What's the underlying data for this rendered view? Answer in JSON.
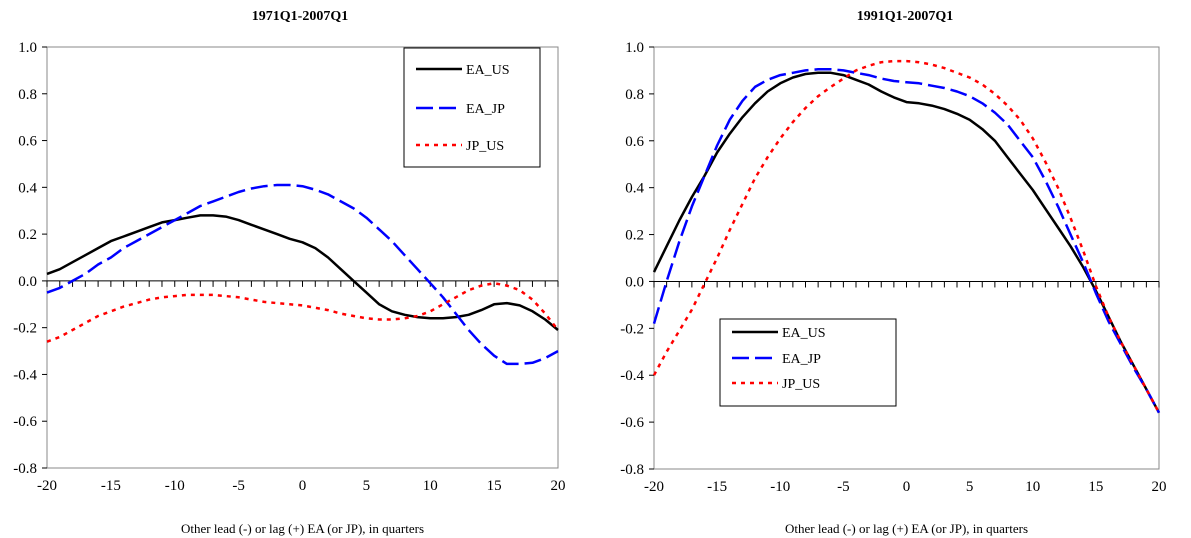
{
  "chart_data": [
    {
      "type": "line",
      "title": "1971Q1-2007Q1",
      "xlabel": "Other lead (-) or lag (+) EA (or JP), in quarters",
      "ylabel": "",
      "xlim": [
        -20,
        20
      ],
      "ylim": [
        -0.8,
        1.0
      ],
      "xticks": [
        -20,
        -15,
        -10,
        -5,
        0,
        5,
        10,
        15,
        20
      ],
      "yticks": [
        -0.8,
        -0.6,
        -0.4,
        -0.2,
        0.0,
        0.2,
        0.4,
        0.6,
        0.8,
        1.0
      ],
      "ytick_labels": [
        "-0.8",
        "-0.6",
        "-0.4",
        "-0.2",
        "0.0",
        "0.2",
        "0.4",
        "0.6",
        "0.8",
        "1.0"
      ],
      "xtick_labels": [
        "-20",
        "-15",
        "-10",
        "-5",
        "0",
        "5",
        "10",
        "15",
        "20"
      ],
      "legend_position": "top-right",
      "x": [
        -20,
        -19,
        -18,
        -17,
        -16,
        -15,
        -14,
        -13,
        -12,
        -11,
        -10,
        -9,
        -8,
        -7,
        -6,
        -5,
        -4,
        -3,
        -2,
        -1,
        0,
        1,
        2,
        3,
        4,
        5,
        6,
        7,
        8,
        9,
        10,
        11,
        12,
        13,
        14,
        15,
        16,
        17,
        18,
        19,
        20
      ],
      "series": [
        {
          "name": "EA_US",
          "color": "#000000",
          "dash": "solid",
          "values": [
            0.03,
            0.05,
            0.08,
            0.11,
            0.14,
            0.17,
            0.19,
            0.21,
            0.23,
            0.25,
            0.26,
            0.27,
            0.28,
            0.28,
            0.275,
            0.26,
            0.24,
            0.22,
            0.2,
            0.18,
            0.165,
            0.14,
            0.1,
            0.05,
            0.0,
            -0.05,
            -0.1,
            -0.13,
            -0.145,
            -0.155,
            -0.16,
            -0.16,
            -0.155,
            -0.145,
            -0.125,
            -0.1,
            -0.095,
            -0.105,
            -0.13,
            -0.165,
            -0.21
          ]
        },
        {
          "name": "EA_JP",
          "color": "#0000ff",
          "dash": "dash",
          "values": [
            -0.05,
            -0.03,
            0.0,
            0.03,
            0.07,
            0.1,
            0.14,
            0.17,
            0.2,
            0.23,
            0.26,
            0.29,
            0.32,
            0.34,
            0.36,
            0.38,
            0.395,
            0.405,
            0.41,
            0.41,
            0.405,
            0.39,
            0.37,
            0.34,
            0.31,
            0.27,
            0.22,
            0.17,
            0.11,
            0.05,
            -0.01,
            -0.07,
            -0.14,
            -0.21,
            -0.27,
            -0.32,
            -0.355,
            -0.355,
            -0.35,
            -0.33,
            -0.3
          ]
        },
        {
          "name": "JP_US",
          "color": "#ff0000",
          "dash": "dot",
          "values": [
            -0.26,
            -0.24,
            -0.21,
            -0.18,
            -0.15,
            -0.13,
            -0.11,
            -0.095,
            -0.08,
            -0.07,
            -0.065,
            -0.06,
            -0.06,
            -0.06,
            -0.065,
            -0.07,
            -0.08,
            -0.09,
            -0.095,
            -0.1,
            -0.105,
            -0.115,
            -0.125,
            -0.14,
            -0.15,
            -0.16,
            -0.165,
            -0.165,
            -0.16,
            -0.15,
            -0.13,
            -0.1,
            -0.07,
            -0.04,
            -0.02,
            -0.01,
            -0.02,
            -0.04,
            -0.08,
            -0.14,
            -0.21
          ]
        }
      ]
    },
    {
      "type": "line",
      "title": "1991Q1-2007Q1",
      "xlabel": "Other lead (-) or lag (+) EA (or JP), in quarters",
      "ylabel": "",
      "xlim": [
        -20,
        20
      ],
      "ylim": [
        -0.8,
        1.0
      ],
      "xticks": [
        -20,
        -15,
        -10,
        -5,
        0,
        5,
        10,
        15,
        20
      ],
      "yticks": [
        -0.8,
        -0.6,
        -0.4,
        -0.2,
        0.0,
        0.2,
        0.4,
        0.6,
        0.8,
        1.0
      ],
      "ytick_labels": [
        "-0.8",
        "-0.6",
        "-0.4",
        "-0.2",
        "0.0",
        "0.2",
        "0.4",
        "0.6",
        "0.8",
        "1.0"
      ],
      "xtick_labels": [
        "-20",
        "-15",
        "-10",
        "-5",
        "0",
        "5",
        "10",
        "15",
        "20"
      ],
      "legend_position": "bottom-left",
      "x": [
        -20,
        -19,
        -18,
        -17,
        -16,
        -15,
        -14,
        -13,
        -12,
        -11,
        -10,
        -9,
        -8,
        -7,
        -6,
        -5,
        -4,
        -3,
        -2,
        -1,
        0,
        1,
        2,
        3,
        4,
        5,
        6,
        7,
        8,
        9,
        10,
        11,
        12,
        13,
        14,
        15,
        16,
        17,
        18,
        19,
        20
      ],
      "series": [
        {
          "name": "EA_US",
          "color": "#000000",
          "dash": "solid",
          "values": [
            0.04,
            0.15,
            0.26,
            0.36,
            0.45,
            0.55,
            0.63,
            0.7,
            0.76,
            0.81,
            0.845,
            0.87,
            0.885,
            0.89,
            0.89,
            0.88,
            0.86,
            0.84,
            0.81,
            0.785,
            0.765,
            0.76,
            0.75,
            0.735,
            0.715,
            0.69,
            0.65,
            0.6,
            0.53,
            0.46,
            0.39,
            0.31,
            0.23,
            0.15,
            0.06,
            -0.04,
            -0.15,
            -0.26,
            -0.36,
            -0.46,
            -0.56
          ]
        },
        {
          "name": "EA_JP",
          "color": "#0000ff",
          "dash": "dash",
          "values": [
            -0.18,
            0.0,
            0.17,
            0.32,
            0.45,
            0.58,
            0.69,
            0.77,
            0.83,
            0.86,
            0.88,
            0.89,
            0.9,
            0.905,
            0.905,
            0.9,
            0.89,
            0.88,
            0.865,
            0.855,
            0.85,
            0.845,
            0.835,
            0.825,
            0.81,
            0.79,
            0.76,
            0.72,
            0.67,
            0.6,
            0.53,
            0.43,
            0.32,
            0.2,
            0.08,
            -0.05,
            -0.17,
            -0.27,
            -0.37,
            -0.46,
            -0.56
          ]
        },
        {
          "name": "JP_US",
          "color": "#ff0000",
          "dash": "dot",
          "values": [
            -0.4,
            -0.3,
            -0.21,
            -0.12,
            -0.01,
            0.1,
            0.22,
            0.33,
            0.44,
            0.53,
            0.61,
            0.68,
            0.74,
            0.79,
            0.83,
            0.865,
            0.9,
            0.92,
            0.935,
            0.94,
            0.94,
            0.935,
            0.925,
            0.91,
            0.89,
            0.87,
            0.84,
            0.8,
            0.75,
            0.69,
            0.61,
            0.51,
            0.4,
            0.27,
            0.13,
            -0.02,
            -0.15,
            -0.26,
            -0.36,
            -0.46,
            -0.56
          ]
        }
      ]
    }
  ]
}
